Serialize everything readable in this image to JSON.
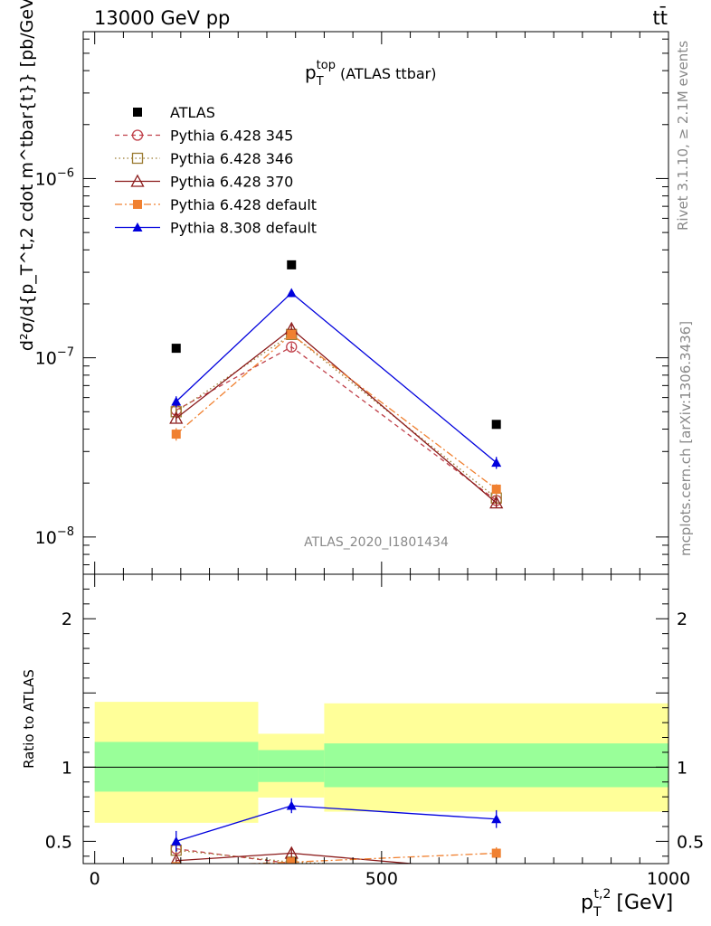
{
  "header": {
    "left": "13000 GeV pp",
    "right": "tt̄"
  },
  "side_labels": {
    "rivet": "Rivet 3.1.10, ≥ 2.1M events",
    "mcplots": "mcplots.cern.ch [arXiv:1306.3436]"
  },
  "colors": {
    "atlas": "#000000",
    "py345": "#c0404a",
    "py346": "#9a7a30",
    "py370": "#8b1a1a",
    "py6def": "#f08030",
    "py8def": "#0000dd",
    "band_inner": "#99ff99",
    "band_outer": "#ffff99"
  },
  "chart_data": [
    {
      "type": "line",
      "panel": "main",
      "title": "p_T^top (ATLAS ttbar)",
      "title_main": "p",
      "title_sub": "T",
      "title_sup": "top",
      "title_rest": "(ATLAS ttbar)",
      "ylabel": "d²σ/d{p_T^t,2 cdot m^tbar{t}} [pb/GeV²]",
      "yscale": "log",
      "ylim": [
        6.2e-09,
        6.6e-06
      ],
      "xlim": [
        -20,
        1000
      ],
      "watermark": "ATLAS_2020_I1801434",
      "ytick_labels": [
        {
          "value": 1e-08,
          "base": "10",
          "exp": "−8"
        },
        {
          "value": 1e-07,
          "base": "10",
          "exp": "−7"
        },
        {
          "value": 1e-06,
          "base": "10",
          "exp": "−6"
        }
      ],
      "series": [
        {
          "name": "ATLAS",
          "key": "atlas",
          "style": "data",
          "x": [
            142,
            343,
            700
          ],
          "y": [
            1.13e-07,
            3.3e-07,
            4.25e-08
          ],
          "err": [
            0,
            0,
            0
          ]
        },
        {
          "name": "Pythia 6.428 345",
          "key": "py345",
          "style": "circle-dashed",
          "x": [
            142,
            343,
            700
          ],
          "y": [
            5.1e-08,
            1.15e-07,
            1.6e-08
          ],
          "err": [
            2e-09,
            6e-09,
            8e-10
          ]
        },
        {
          "name": "Pythia 6.428 346",
          "key": "py346",
          "style": "square-dotted",
          "x": [
            142,
            343,
            700
          ],
          "y": [
            5e-08,
            1.35e-07,
            1.65e-08
          ],
          "err": [
            2e-09,
            7e-09,
            8e-10
          ]
        },
        {
          "name": "Pythia 6.428 370",
          "key": "py370",
          "style": "triangle-solid",
          "x": [
            142,
            343,
            700
          ],
          "y": [
            4.6e-08,
            1.45e-07,
            1.55e-08
          ],
          "err": [
            2.5e-09,
            8e-09,
            1e-09
          ]
        },
        {
          "name": "Pythia 6.428 default",
          "key": "py6def",
          "style": "filled-square-dashdot",
          "x": [
            142,
            343,
            700
          ],
          "y": [
            3.75e-08,
            1.35e-07,
            1.85e-08
          ],
          "err": [
            3e-09,
            8e-09,
            1.2e-09
          ]
        },
        {
          "name": "Pythia 8.308 default",
          "key": "py8def",
          "style": "filled-triangle-solid",
          "x": [
            142,
            343,
            700
          ],
          "y": [
            5.7e-08,
            2.3e-07,
            2.6e-08
          ],
          "err": [
            4e-09,
            1.2e-08,
            2e-09
          ]
        }
      ]
    },
    {
      "type": "line",
      "panel": "ratio",
      "ylabel": "Ratio to ATLAS",
      "xlabel": "p_T^t,2 [GeV]",
      "xlabel_main": "p",
      "xlabel_sub": "T",
      "xlabel_sup": "t,2",
      "xlabel_unit": "[GeV]",
      "ylim": [
        0.35,
        2.3
      ],
      "xlim": [
        -20,
        1000
      ],
      "xtick_labels": [
        {
          "value": 0,
          "label": "0"
        },
        {
          "value": 500,
          "label": "500"
        },
        {
          "value": 1000,
          "label": "1000"
        }
      ],
      "ytick_labels": [
        {
          "value": 0.5,
          "label": "0.5"
        },
        {
          "value": 1,
          "label": "1"
        },
        {
          "value": 2,
          "label": "2"
        }
      ],
      "bands": [
        {
          "x0": 0,
          "x1": 285,
          "inner": [
            0.835,
            1.17
          ],
          "outer": [
            0.625,
            1.44
          ]
        },
        {
          "x0": 285,
          "x1": 400,
          "inner": [
            0.9,
            1.115
          ],
          "outer": [
            0.795,
            1.225
          ]
        },
        {
          "x0": 400,
          "x1": 1000,
          "inner": [
            0.865,
            1.16
          ],
          "outer": [
            0.7,
            1.43
          ]
        }
      ],
      "series": [
        {
          "key": "py345",
          "x": [
            142,
            343,
            700
          ],
          "y": [
            0.45,
            0.35,
            0.3
          ],
          "err": [
            0.02,
            0.02,
            0.02
          ]
        },
        {
          "key": "py346",
          "x": [
            142,
            343,
            700
          ],
          "y": [
            0.44,
            0.36,
            0.3
          ],
          "err": [
            0.02,
            0.02,
            0.02
          ]
        },
        {
          "key": "py370",
          "x": [
            142,
            343,
            700
          ],
          "y": [
            0.37,
            0.42,
            0.3
          ],
          "err": [
            0.02,
            0.04,
            0.02
          ]
        },
        {
          "key": "py6def",
          "x": [
            142,
            343,
            700
          ],
          "y": [
            0.33,
            0.36,
            0.42
          ],
          "err": [
            0.03,
            0.03,
            0.04
          ]
        },
        {
          "key": "py8def",
          "x": [
            142,
            343,
            700
          ],
          "y": [
            0.5,
            0.74,
            0.65
          ],
          "err": [
            0.07,
            0.05,
            0.06
          ]
        }
      ]
    }
  ]
}
